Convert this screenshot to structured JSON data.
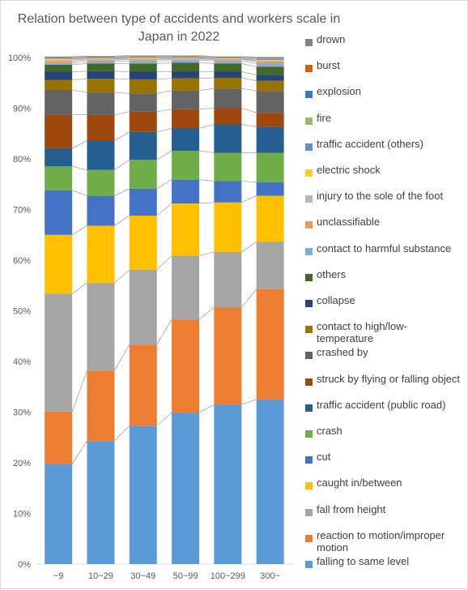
{
  "chart_data": {
    "type": "bar",
    "stacked": "percent",
    "title": "Relation between type of accidents and workers scale in Japan in 2022",
    "categories": [
      "~9",
      "10~29",
      "30~49",
      "50~99",
      "100~299",
      "300~"
    ],
    "y_ticks": [
      "0%",
      "10%",
      "20%",
      "30%",
      "40%",
      "50%",
      "60%",
      "70%",
      "80%",
      "90%",
      "100%"
    ],
    "ylim": [
      0,
      100
    ],
    "grid": false,
    "legend_position": "right",
    "series_lines": true,
    "series": [
      {
        "name": "falling to same level",
        "color": "#5b9bd5",
        "values": [
          19.8,
          24.3,
          27.3,
          29.9,
          31.5,
          32.5
        ]
      },
      {
        "name": "reaction to motion/improper motion",
        "color": "#ed7d31",
        "values": [
          10.3,
          13.9,
          16.0,
          18.4,
          19.2,
          21.8
        ]
      },
      {
        "name": "fall from height",
        "color": "#a5a5a5",
        "values": [
          23.3,
          17.3,
          14.8,
          12.6,
          10.9,
          9.3
        ]
      },
      {
        "name": "caught in/between",
        "color": "#ffc000",
        "values": [
          11.6,
          11.3,
          10.7,
          10.3,
          9.8,
          9.1
        ]
      },
      {
        "name": "cut",
        "color": "#4472c4",
        "values": [
          8.8,
          5.9,
          5.3,
          4.7,
          4.2,
          2.7
        ]
      },
      {
        "name": "crash",
        "color": "#70ad47",
        "values": [
          4.7,
          5.1,
          5.7,
          5.7,
          5.6,
          5.8
        ]
      },
      {
        "name": "traffic accident (public road)",
        "color": "#255e91",
        "values": [
          3.6,
          5.8,
          5.5,
          4.4,
          5.6,
          5.1
        ]
      },
      {
        "name": "struck by flying or falling object",
        "color": "#9e480e",
        "values": [
          6.6,
          5.1,
          4.0,
          3.8,
          3.2,
          2.8
        ]
      },
      {
        "name": "crashed by",
        "color": "#636363",
        "values": [
          4.9,
          4.4,
          3.6,
          3.7,
          3.9,
          4.3
        ]
      },
      {
        "name": "contact to high/low-temperature",
        "color": "#997300",
        "values": [
          2.0,
          2.7,
          2.8,
          2.4,
          2.1,
          2.0
        ]
      },
      {
        "name": "collapse",
        "color": "#264478",
        "values": [
          1.6,
          1.5,
          1.5,
          1.3,
          1.2,
          1.2
        ]
      },
      {
        "name": "others",
        "color": "#43682b",
        "values": [
          1.4,
          1.5,
          1.6,
          1.8,
          1.6,
          1.6
        ]
      },
      {
        "name": "contact to harmful substance",
        "color": "#7cafdd",
        "values": [
          0.3,
          0.4,
          0.5,
          0.5,
          0.5,
          0.6
        ]
      },
      {
        "name": "unclassifiable",
        "color": "#f1975a",
        "values": [
          0.4,
          0.3,
          0.3,
          0.2,
          0.3,
          0.4
        ]
      },
      {
        "name": "injury to the sole of the foot",
        "color": "#b7b7b7",
        "values": [
          0.2,
          0.2,
          0.1,
          0.1,
          0.1,
          0.2
        ]
      },
      {
        "name": "electric shock",
        "color": "#ffcd33",
        "values": [
          0.2,
          0.1,
          0.2,
          0.1,
          0.1,
          0.1
        ]
      },
      {
        "name": "traffic accident (others)",
        "color": "#698ed0",
        "values": [
          0.1,
          0.1,
          0.1,
          0.1,
          0.1,
          0.2
        ]
      },
      {
        "name": "fire",
        "color": "#8cc168",
        "values": [
          0.1,
          0.1,
          0.1,
          0.1,
          0.1,
          0.1
        ]
      },
      {
        "name": "explosion",
        "color": "#327dc2",
        "values": [
          0.1,
          0.1,
          0.1,
          0.1,
          0.1,
          0.1
        ]
      },
      {
        "name": "burst",
        "color": "#d26012",
        "values": [
          0.1,
          0.1,
          0.1,
          0.1,
          0.1,
          0.1
        ]
      },
      {
        "name": "drown",
        "color": "#848484",
        "values": [
          0.1,
          0.1,
          0.1,
          0.1,
          0.0,
          0.1
        ]
      }
    ]
  }
}
